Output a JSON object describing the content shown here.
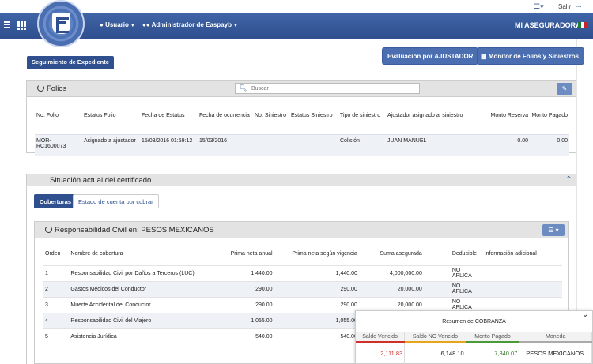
{
  "top": {
    "salir": "Salir"
  },
  "nav": {
    "usuario": "Usuario",
    "admin": "Administrador de Easpayb",
    "brand": "MI ASEGURADORA"
  },
  "tabs": {
    "seguimiento": "Seguimiento de Expediente"
  },
  "buttons": {
    "evaluacion": "Evaluación por AJUSTADOR",
    "monitor": "Monitor de Folios y Siniestros"
  },
  "folios": {
    "title": "Folios",
    "search_placeholder": "Buscar",
    "headers": [
      "No. Folio",
      "Estatus Folio",
      "Fecha de Estatus",
      "Fecha de ocurrencia",
      "No. Siniestro",
      "Estatus Siniestro",
      "Tipo de siniestro",
      "Ajustador asignado al siniestro",
      "Monto Reserva",
      "Monto Pagado"
    ],
    "row": [
      "MOR-RC1600073",
      "Asignado a ajustador",
      "15/03/2016 01:59:12",
      "15/03/2016",
      "",
      "",
      "Colisión",
      "JUAN MANUEL",
      "0.00",
      "0.00"
    ]
  },
  "situacion": {
    "title": "Situación actual del certificado",
    "tabs": [
      "Coberturas",
      "Estado de cuenta por cobrar"
    ]
  },
  "coberturas": {
    "title": "Responsabilidad Civil en: PESOS MEXICANOS",
    "headers": [
      "Orden",
      "Nombre de cobertura",
      "Prima neta anual",
      "Prima neta según vigencia",
      "Suma asegurada",
      "Deducible",
      "Información adicional"
    ],
    "rows": [
      [
        "1",
        "Responsabilidad Civil por Daños a Terceros (LUC)",
        "1,440.00",
        "1,440.00",
        "4,000,000.00",
        "NO APLICA",
        ""
      ],
      [
        "2",
        "Gastos Médicos del Conductor",
        "290.00",
        "290.00",
        "20,000.00",
        "NO APLICA",
        ""
      ],
      [
        "3",
        "Muerte Accidental del Conductor",
        "290.00",
        "290.00",
        "20,000.00",
        "NO APLICA",
        ""
      ],
      [
        "4",
        "Responsabilidad Civil del Viajero",
        "1,055.00",
        "1,055.00",
        "",
        "",
        ""
      ],
      [
        "5",
        "Asistencia Jurídica",
        "540.00",
        "540.00",
        "",
        "",
        ""
      ]
    ]
  },
  "cobranza": {
    "title": "Resumen de COBRANZA",
    "headers": [
      "Saldo Vencido",
      "Saldo NO Vencido",
      "Monto Pagado",
      "Moneda"
    ],
    "values": [
      "2,111.83",
      "6,148.10",
      "7,340.07",
      "PESOS MEXICANOS"
    ],
    "colors": {
      "vencido": "#d0302c",
      "no_vencido": "#e8a51a",
      "pagado": "#4a9a3a",
      "moneda": "#aaaaaa"
    }
  }
}
